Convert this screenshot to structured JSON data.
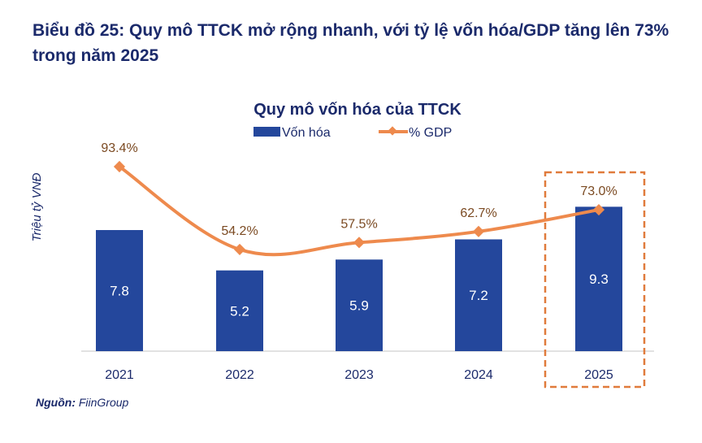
{
  "heading": "Biểu đồ 25: Quy mô TTCK mở rộng nhanh, với tỷ lệ vốn hóa/GDP tăng lên 73% trong năm 2025",
  "source_label": "Nguồn:",
  "source_value": "FiinGroup",
  "chart_data": {
    "type": "bar+line",
    "title": "Quy mô vốn hóa của TTCK",
    "ylabel": "Triệu tỷ VNĐ",
    "categories": [
      "2021",
      "2022",
      "2023",
      "2024",
      "2025"
    ],
    "series": [
      {
        "name": "Vốn hóa",
        "type": "bar",
        "values": [
          7.8,
          5.2,
          5.9,
          7.2,
          9.3
        ],
        "labels": [
          "7.8",
          "5.2",
          "5.9",
          "7.2",
          "9.3"
        ],
        "color": "#24479c"
      },
      {
        "name": "% GDP",
        "type": "line",
        "values": [
          93.4,
          54.2,
          57.5,
          62.7,
          73.0
        ],
        "labels": [
          "93.4%",
          "54.2%",
          "57.5%",
          "62.7%",
          "73.0%"
        ],
        "color": "#ee8a4d"
      }
    ],
    "legend": "top",
    "grid": false,
    "highlight": "2025",
    "highlight_color": "#e07b3c"
  }
}
